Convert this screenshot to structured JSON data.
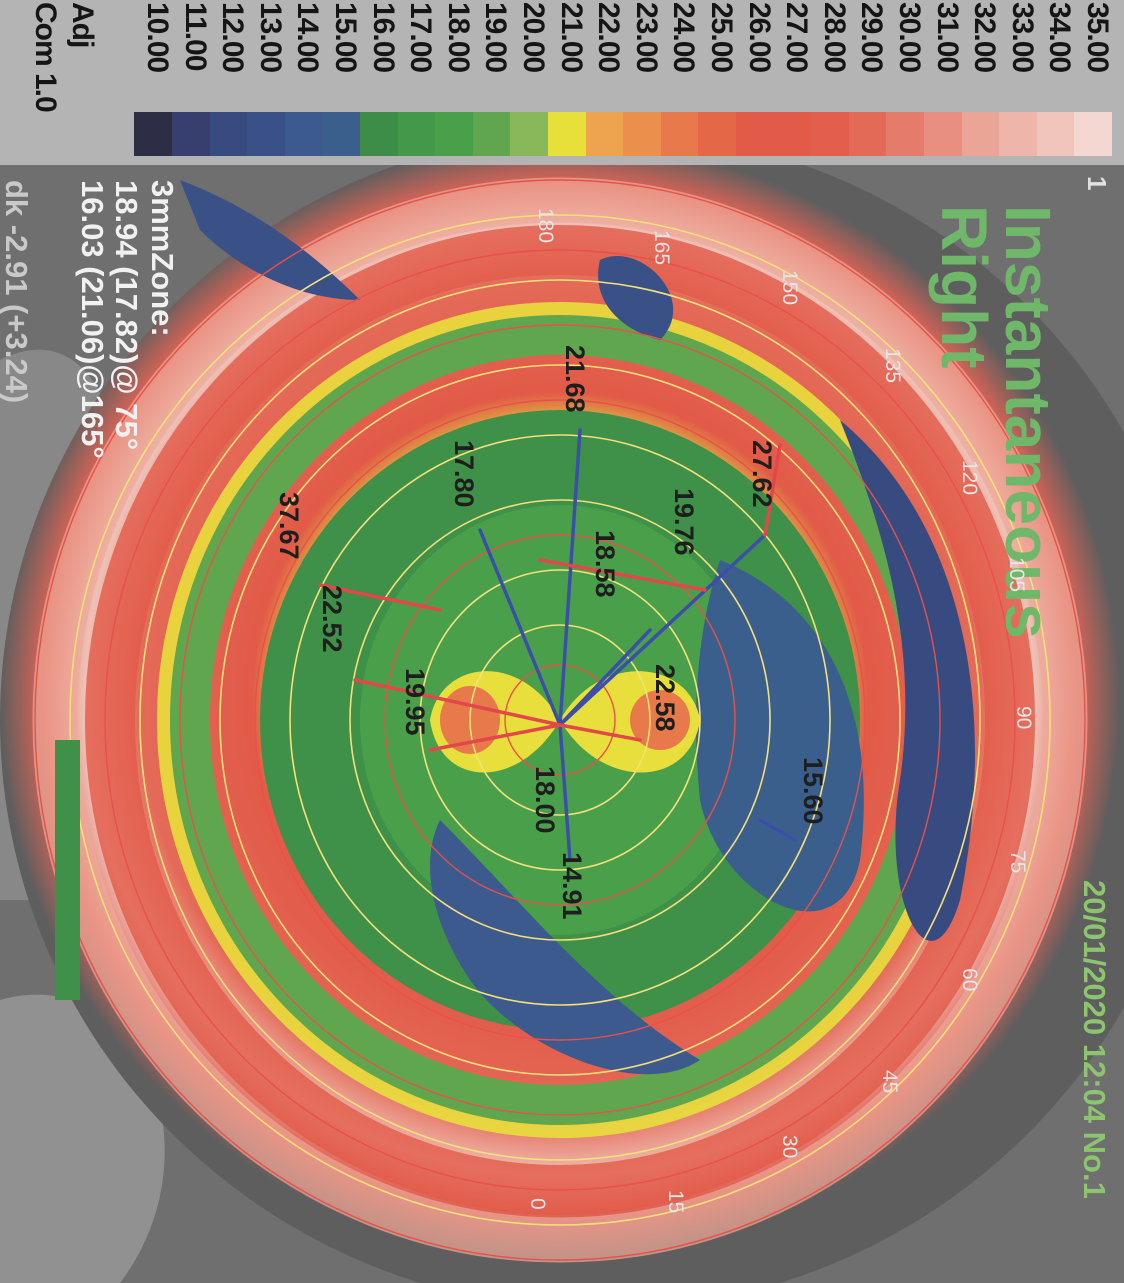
{
  "scale": {
    "labels": [
      "35.00",
      "34.00",
      "33.00",
      "32.00",
      "31.00",
      "30.00",
      "29.00",
      "28.00",
      "27.00",
      "26.00",
      "25.00",
      "24.00",
      "23.00",
      "22.00",
      "21.00",
      "20.00",
      "19.00",
      "18.00",
      "17.00",
      "16.00",
      "15.00",
      "14.00",
      "13.00",
      "12.00",
      "11.00",
      "10.00"
    ],
    "colors": [
      "#f3d7d0",
      "#f0c6bc",
      "#eeb6aa",
      "#eba596",
      "#e98f7f",
      "#e57b6a",
      "#e46a58",
      "#e35f4d",
      "#e25a48",
      "#e25a48",
      "#e46748",
      "#e8794b",
      "#eb8f4d",
      "#eea44f",
      "#e8e03a",
      "#88b85a",
      "#5fa64e",
      "#4aa04a",
      "#43984a",
      "#3d8d49",
      "#3b5f8d",
      "#3c5a8e",
      "#3a5188",
      "#384b81",
      "#363f6e",
      "#2d2d46"
    ],
    "adj_label": "Adj",
    "com_label": "Com 1.0"
  },
  "header": {
    "marker": "1",
    "title_line1": "Instantaneous",
    "title_line2": "Right",
    "datetime": "20/01/2020 12:04 No.1"
  },
  "zone": {
    "title": "3mmZone:",
    "line1": "18.94 (17.82)@ 75°",
    "line2": "16.03 (21.06)@165°",
    "line3": "dk -2.91 (+3.24)"
  },
  "degree_marks": [
    "180",
    "165",
    "150",
    "135",
    "120",
    "105",
    "90",
    "75",
    "60",
    "45",
    "30",
    "15",
    "0"
  ],
  "readings": [
    "27.62",
    "21.68",
    "19.76",
    "17.80",
    "18.58",
    "37.67",
    "22.52",
    "22.58",
    "19.95",
    "15.60",
    "18.00",
    "14.91"
  ]
}
